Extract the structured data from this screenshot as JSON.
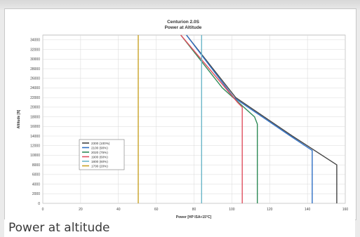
{
  "caption": "Power at altitude",
  "chart_data": {
    "type": "line",
    "title": "Centurion 2.0S",
    "subtitle": "Power at Altitude",
    "xlabel": "Power [HP ISA+15°C]",
    "ylabel": "Altitude [ft]",
    "xlim": [
      0,
      160
    ],
    "ylim": [
      0,
      35000
    ],
    "xticks": [
      0,
      20,
      40,
      60,
      80,
      100,
      120,
      140,
      160
    ],
    "yticks": [
      0,
      2000,
      4000,
      6000,
      8000,
      10000,
      12000,
      14000,
      16000,
      18000,
      20000,
      22000,
      24000,
      26000,
      28000,
      30000,
      32000,
      34000
    ],
    "grid": true,
    "legend_position": "left",
    "series": [
      {
        "name": "2300 (100%)",
        "color": "#444444",
        "points": [
          [
            155.5,
            0
          ],
          [
            155.5,
            8000
          ],
          [
            132,
            14000
          ],
          [
            102,
            22000
          ],
          [
            76,
            35000
          ]
        ]
      },
      {
        "name": "2100 (90%)",
        "color": "#2f6fc4",
        "points": [
          [
            142.5,
            0
          ],
          [
            142.5,
            11000
          ],
          [
            131,
            14000
          ],
          [
            101,
            22000
          ],
          [
            76,
            35000
          ]
        ]
      },
      {
        "name": "2020 (75%)",
        "color": "#2e8b57",
        "points": [
          [
            113.5,
            0
          ],
          [
            113.5,
            16500
          ],
          [
            112,
            18000
          ],
          [
            95,
            24000
          ],
          [
            73,
            35000
          ]
        ]
      },
      {
        "name": "1900 (60%)",
        "color": "#e05060",
        "points": [
          [
            105.5,
            0
          ],
          [
            105.5,
            20000
          ],
          [
            103,
            21000
          ],
          [
            88,
            28000
          ],
          [
            73,
            35000
          ]
        ]
      },
      {
        "name": "1800 (60%)",
        "color": "#6cb6c8",
        "points": [
          [
            84,
            0
          ],
          [
            84,
            35000
          ]
        ]
      },
      {
        "name": "1700 (20%)",
        "color": "#c9a227",
        "points": [
          [
            50.5,
            0
          ],
          [
            50.5,
            35000
          ]
        ]
      }
    ]
  }
}
